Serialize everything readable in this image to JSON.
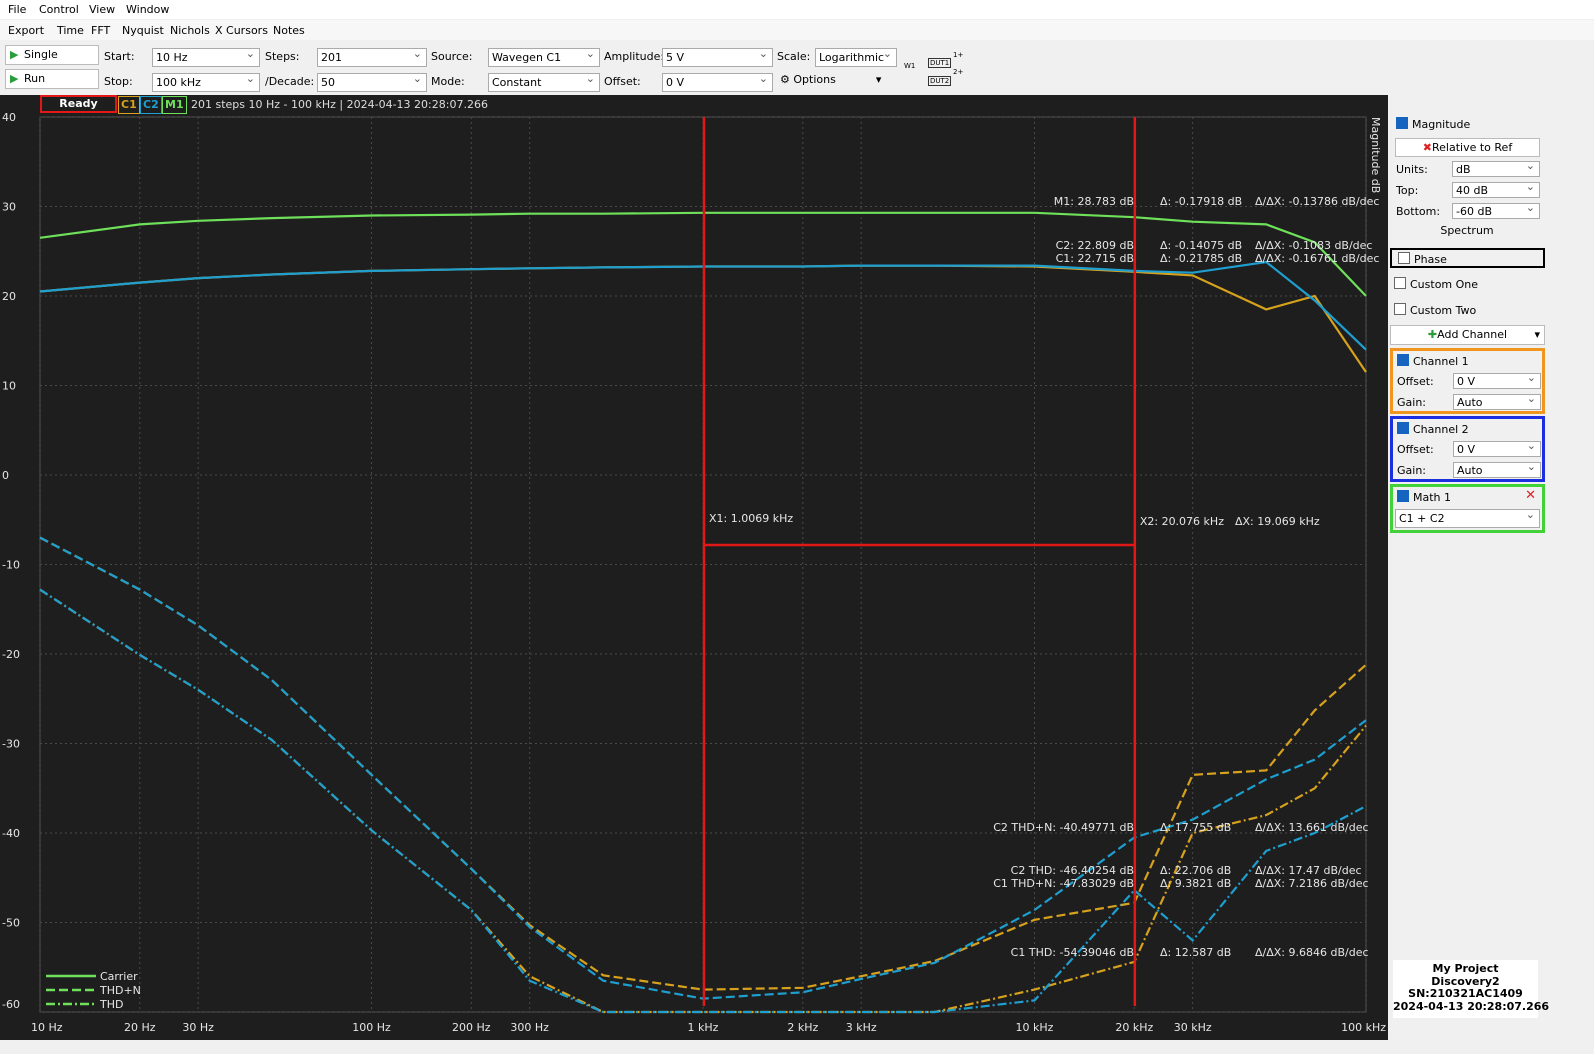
{
  "menu": [
    "File",
    "Control",
    "View",
    "Window"
  ],
  "tabs": [
    "Export",
    "Time",
    "FFT",
    "Nyquist",
    "Nichols",
    "X Cursors",
    "Notes"
  ],
  "toolbar": {
    "single": "Single",
    "run": "Run",
    "fields": [
      {
        "label": "Start:",
        "value": "10 Hz"
      },
      {
        "label": "Stop:",
        "value": "100 kHz"
      },
      {
        "label": "Steps:",
        "value": "201"
      },
      {
        "label": "/Decade:",
        "value": "50"
      },
      {
        "label": "Source:",
        "value": "Wavegen C1"
      },
      {
        "label": "Mode:",
        "value": "Constant"
      },
      {
        "label": "Amplitude:",
        "value": "5 V"
      },
      {
        "label": "Offset:",
        "value": "0 V"
      },
      {
        "label": "Scale:",
        "value": "Logarithmic"
      }
    ],
    "options": "Options",
    "diagram": [
      "W1",
      "DUT1",
      "DUT2",
      "1+",
      "2+"
    ]
  },
  "status": {
    "state": "Ready",
    "channels": [
      {
        "name": "C1",
        "color": "#d6a21e"
      },
      {
        "name": "C2",
        "color": "#1e9fd0"
      },
      {
        "name": "M1",
        "color": "#6ee05a"
      }
    ],
    "info": "201 steps  10 Hz - 100 kHz | 2024-04-13 20:28:07.266"
  },
  "chart_data": {
    "type": "line",
    "y_label": "Magnitude dB",
    "log_x": true,
    "grid": true,
    "xlim": [
      10,
      100000
    ],
    "ylim": [
      -60,
      40
    ],
    "xticks": [
      {
        "value": 10,
        "label": "10 Hz"
      },
      {
        "value": 20,
        "label": "20 Hz"
      },
      {
        "value": 30,
        "label": "30 Hz"
      },
      {
        "value": 100,
        "label": "100 Hz"
      },
      {
        "value": 200,
        "label": "200 Hz"
      },
      {
        "value": 300,
        "label": "300 Hz"
      },
      {
        "value": 1000,
        "label": "1 kHz"
      },
      {
        "value": 2000,
        "label": "2 kHz"
      },
      {
        "value": 3000,
        "label": "3 kHz"
      },
      {
        "value": 10000,
        "label": "10 kHz"
      },
      {
        "value": 20000,
        "label": "20 kHz"
      },
      {
        "value": 30000,
        "label": "30 kHz"
      },
      {
        "value": 100000,
        "label": "100 kHz"
      }
    ],
    "yticks": [
      -60,
      -50,
      -40,
      -30,
      -20,
      -10,
      0,
      10,
      20,
      30,
      40
    ],
    "x": [
      10,
      20,
      30,
      50,
      100,
      200,
      300,
      500,
      1000,
      2000,
      3000,
      5000,
      10000,
      20000,
      30000,
      50000,
      70000,
      100000
    ],
    "series": [
      {
        "color": "#d6a21e",
        "dash": "dashdot",
        "values": [
          -12.8,
          -20.1,
          -24,
          -29.6,
          -39.7,
          -48.6,
          -56,
          -60,
          -60,
          -60,
          -60,
          -60,
          -57.5,
          -54.4,
          -40,
          -38,
          -35,
          -28
        ]
      },
      {
        "color": "#1e9fd0",
        "dash": "dashdot",
        "values": [
          -12.8,
          -20.1,
          -24,
          -29.6,
          -39.7,
          -48.6,
          -56.5,
          -60,
          -60,
          -60,
          -60,
          -60,
          -58.7,
          -46.4,
          -52,
          -42,
          -40,
          -37
        ]
      },
      {
        "color": "#d6a21e",
        "dash": "dashed",
        "values": [
          -7,
          -12.8,
          -16.8,
          -22.9,
          -33.5,
          -44,
          -50.3,
          -55.9,
          -57.5,
          -57.3,
          -56,
          -54.3,
          -49.7,
          -47.8,
          -33.5,
          -33,
          -26.3,
          -21.2
        ]
      },
      {
        "color": "#1e9fd0",
        "dash": "dashed",
        "values": [
          -7,
          -12.8,
          -16.8,
          -22.9,
          -33.5,
          -44,
          -50.5,
          -56.5,
          -58.5,
          -57.8,
          -56.3,
          -54.5,
          -48.6,
          -40.5,
          -38.5,
          -34,
          -31.8,
          -27.4
        ]
      },
      {
        "color": "#6ee05a",
        "dash": "solid",
        "values": [
          26.5,
          28,
          28.4,
          28.7,
          29,
          29.1,
          29.2,
          29.2,
          29.3,
          29.3,
          29.3,
          29.3,
          29.3,
          28.8,
          28.3,
          28,
          26,
          20
        ]
      },
      {
        "color": "#d6a21e",
        "dash": "solid",
        "values": [
          20.5,
          21.5,
          22,
          22.4,
          22.8,
          23,
          23.1,
          23.2,
          23.3,
          23.3,
          23.4,
          23.4,
          23.3,
          22.7,
          22.3,
          18.5,
          20,
          11.5
        ]
      },
      {
        "color": "#1e9fd0",
        "dash": "solid",
        "values": [
          20.5,
          21.5,
          22,
          22.4,
          22.8,
          23,
          23.1,
          23.2,
          23.3,
          23.3,
          23.4,
          23.4,
          23.4,
          22.8,
          22.6,
          23.8,
          19.5,
          14
        ]
      }
    ],
    "legend": {
      "color": "#6ee05a",
      "items": [
        {
          "name": "Carrier",
          "dash": "solid"
        },
        {
          "name": "THD+N",
          "dash": "dashed"
        },
        {
          "name": "THD",
          "dash": "dashdot"
        }
      ]
    },
    "cursors": [
      {
        "x": 1006.9,
        "label": "X1: 1.0069 kHz"
      },
      {
        "x": 20076,
        "label": "X2: 20.076 kHz"
      }
    ],
    "cursor_delta": "ΔX: 19.069 kHz",
    "cursor_color": "#e01818",
    "readouts": [
      [
        "M1: 28.783 dB",
        "Δ: -0.17918 dB",
        "Δ/ΔX: -0.13786 dB/dec"
      ],
      [
        "C2: 22.809 dB",
        "Δ: -0.14075 dB",
        "Δ/ΔX: -0.1083 dB/dec"
      ],
      [
        "C1: 22.715 dB",
        "Δ: -0.21785 dB",
        "Δ/ΔX: -0.16761 dB/dec"
      ],
      [
        "C2 THD+N: -40.49771 dB",
        "Δ: 17.755 dB",
        "Δ/ΔX: 13.661 dB/dec"
      ],
      [
        "C2 THD: -46.40254 dB",
        "Δ: 22.706 dB",
        "Δ/ΔX: 17.47 dB/dec"
      ],
      [
        "C1 THD+N: -47.83029 dB",
        "Δ: 9.3821 dB",
        "Δ/ΔX: 7.2186 dB/dec"
      ],
      [
        "C1 THD: -54.39046 dB",
        "Δ: 12.587 dB",
        "Δ/ΔX: 9.6846 dB/dec"
      ]
    ]
  },
  "panel": {
    "magnitude": {
      "title": "Magnitude",
      "relative": "Relative to Ref",
      "rows": [
        {
          "label": "Units:",
          "value": "dB"
        },
        {
          "label": "Top:",
          "value": "40 dB"
        },
        {
          "label": "Bottom:",
          "value": "-60 dB"
        }
      ],
      "spectrum": "Spectrum"
    },
    "phase": "Phase",
    "custom": [
      "Custom One",
      "Custom Two"
    ],
    "add": "Add Channel",
    "channels": [
      {
        "title": "Channel 1",
        "rows": [
          {
            "label": "Offset:",
            "value": "0 V"
          },
          {
            "label": "Gain:",
            "value": "Auto"
          }
        ]
      },
      {
        "title": "Channel 2",
        "rows": [
          {
            "label": "Offset:",
            "value": "0 V"
          },
          {
            "label": "Gain:",
            "value": "Auto"
          }
        ]
      }
    ],
    "math": {
      "title": "Math 1",
      "expr": "C1 + C2"
    }
  },
  "project": [
    "My Project",
    "Discovery2",
    "SN:210321AC1409",
    "2024-04-13 20:28:07.266"
  ]
}
